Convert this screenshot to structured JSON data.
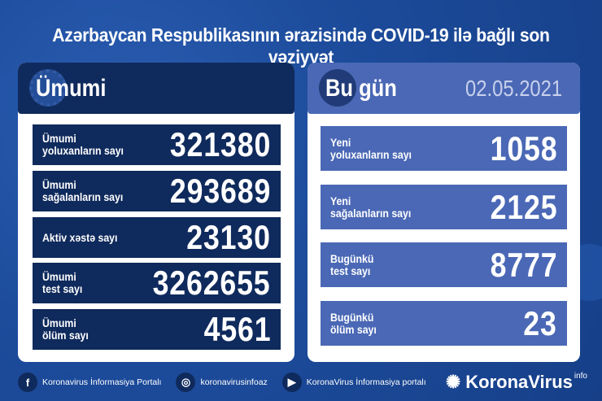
{
  "title": "Azərbaycan Respublikasının ərazisində COVID-19 ilə bağlı son vəziyyət",
  "total": {
    "heading": "Ümumi",
    "rows": [
      {
        "label": "Ümumi\nyoluxanların sayı",
        "value": "321380"
      },
      {
        "label": "Ümumi\nsağalanların sayı",
        "value": "293689"
      },
      {
        "label": "Aktiv xəstə sayı",
        "value": "23130"
      },
      {
        "label": "Ümumi\ntest sayı",
        "value": "3262655"
      },
      {
        "label": "Ümumi\nölüm sayı",
        "value": "4561"
      }
    ]
  },
  "today": {
    "heading": "Bu gün",
    "date": "02.05.2021",
    "rows": [
      {
        "label": "Yeni\nyoluxanların sayı",
        "value": "1058"
      },
      {
        "label": "Yeni\nsağalanların sayı",
        "value": "2125"
      },
      {
        "label": "Bugünkü\ntest sayı",
        "value": "8777"
      },
      {
        "label": "Bugünkü\nölüm sayı",
        "value": "23"
      }
    ]
  },
  "footer": {
    "links": [
      {
        "icon": "facebook-icon",
        "glyph": "f",
        "label": "Koronavirus İnformasiya Portalı"
      },
      {
        "icon": "instagram-icon",
        "glyph": "◎",
        "label": "koronavirusinfoaz"
      },
      {
        "icon": "youtube-icon",
        "glyph": "▶",
        "label": "KoronaVirus İnformasiya portalı"
      }
    ],
    "brand": "KoronaVirus",
    "brand_sup": "info"
  },
  "colors": {
    "background": "#1d4c9c",
    "navy": "#0f2a5c",
    "today_blue": "#4a68b5",
    "date": "#c8d0ec"
  }
}
